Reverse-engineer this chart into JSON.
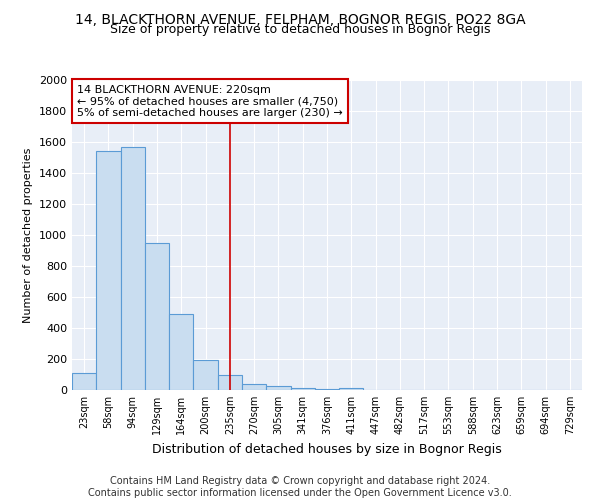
{
  "title1": "14, BLACKTHORN AVENUE, FELPHAM, BOGNOR REGIS, PO22 8GA",
  "title2": "Size of property relative to detached houses in Bognor Regis",
  "xlabel": "Distribution of detached houses by size in Bognor Regis",
  "ylabel": "Number of detached properties",
  "categories": [
    "23sqm",
    "58sqm",
    "94sqm",
    "129sqm",
    "164sqm",
    "200sqm",
    "235sqm",
    "270sqm",
    "305sqm",
    "341sqm",
    "376sqm",
    "411sqm",
    "447sqm",
    "482sqm",
    "517sqm",
    "553sqm",
    "588sqm",
    "623sqm",
    "659sqm",
    "694sqm",
    "729sqm"
  ],
  "values": [
    110,
    1540,
    1570,
    950,
    490,
    195,
    95,
    40,
    25,
    15,
    8,
    15,
    0,
    0,
    0,
    0,
    0,
    0,
    0,
    0,
    0
  ],
  "bar_color": "#c9ddf0",
  "bar_edge_color": "#5b9bd5",
  "red_line_x": 6.0,
  "annotation_text": "14 BLACKTHORN AVENUE: 220sqm\n← 95% of detached houses are smaller (4,750)\n5% of semi-detached houses are larger (230) →",
  "ylim": [
    0,
    2000
  ],
  "yticks": [
    0,
    200,
    400,
    600,
    800,
    1000,
    1200,
    1400,
    1600,
    1800,
    2000
  ],
  "background_color": "#e8eef7",
  "grid_color": "#ffffff",
  "footer": "Contains HM Land Registry data © Crown copyright and database right 2024.\nContains public sector information licensed under the Open Government Licence v3.0.",
  "title_fontsize": 10,
  "subtitle_fontsize": 9,
  "annotation_fontsize": 8,
  "footer_fontsize": 7,
  "ylabel_fontsize": 8,
  "xlabel_fontsize": 9
}
